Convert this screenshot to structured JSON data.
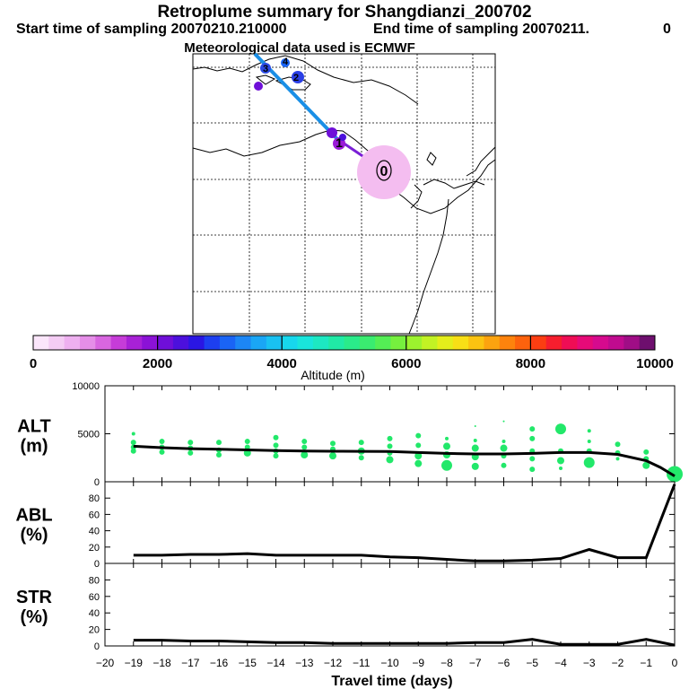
{
  "header": {
    "title": "Retroplume summary for Shangdianzi_200702",
    "start_label": "Start time of sampling 20070210.210000",
    "end_label": "End time of sampling 20070211.",
    "end_suffix": "0",
    "met_label": "Meteorological data used is ECMWF"
  },
  "map_overlay": {
    "receptor_marker": "0",
    "labels": [
      "4",
      "3",
      "2",
      "1"
    ]
  },
  "colors": {
    "plume_dark": "#7a1fd6",
    "plume_light": "#1a8fe6",
    "receptor_halo": "#f4bdf0",
    "dots": "#22e86a",
    "line": "#000000"
  },
  "icons": [
    "colorbar-icon",
    "plume-track-icon"
  ],
  "chart_data": [
    {
      "type": "colorbar",
      "title": "Altitude (m)",
      "range": [
        0,
        10000
      ],
      "tick_labels": [
        "0",
        "2000",
        "4000",
        "6000",
        "8000",
        "10000"
      ],
      "tick_values": [
        0,
        2000,
        4000,
        6000,
        8000,
        10000
      ],
      "colors": [
        "#fbe6fb",
        "#f4ccf4",
        "#eeb0f0",
        "#e58ee8",
        "#d866e0",
        "#c63cd8",
        "#a821d6",
        "#8b12d6",
        "#6f0fd8",
        "#4c10dc",
        "#2a16e3",
        "#1d3ff0",
        "#1a64f5",
        "#1c86f5",
        "#1aa6f5",
        "#19c1f2",
        "#17d7ed",
        "#19e5dc",
        "#1de8c2",
        "#20eaa6",
        "#2aeb8a",
        "#3aec70",
        "#54ee55",
        "#76f03e",
        "#9cf22e",
        "#c2f224",
        "#e4ee1b",
        "#f8df16",
        "#fbc311",
        "#fca30f",
        "#fd830d",
        "#fd620d",
        "#fb3e12",
        "#f61e2e",
        "#ef0d55",
        "#e60a78",
        "#d60a8e",
        "#c00b8f",
        "#a00d86",
        "#6e0f6e"
      ]
    },
    {
      "type": "scatter",
      "title": "ALT",
      "ylabel": "ALT (m)",
      "ylabel_lines": [
        "ALT",
        "(m)"
      ],
      "ylim": [
        0,
        10000
      ],
      "ytick_labels": [
        "0",
        "5000",
        "10000"
      ],
      "ytick_values": [
        0,
        5000,
        10000
      ],
      "line": {
        "x": [
          -19,
          -18,
          -17,
          -16,
          -15,
          -14,
          -13,
          -12,
          -11,
          -10,
          -9,
          -8,
          -7,
          -6,
          -5,
          -4,
          -3,
          -2,
          -1,
          -0.5,
          0
        ],
        "y": [
          3700,
          3550,
          3450,
          3380,
          3320,
          3250,
          3200,
          3180,
          3170,
          3150,
          3050,
          2950,
          2900,
          2900,
          2950,
          3050,
          3050,
          2850,
          2200,
          1500,
          600
        ]
      },
      "points": [
        {
          "x": -19,
          "y": 5000,
          "s": 2
        },
        {
          "x": -19,
          "y": 4100,
          "s": 3
        },
        {
          "x": -19,
          "y": 3600,
          "s": 3
        },
        {
          "x": -19,
          "y": 3200,
          "s": 3
        },
        {
          "x": -18,
          "y": 4200,
          "s": 3
        },
        {
          "x": -18,
          "y": 3600,
          "s": 3
        },
        {
          "x": -18,
          "y": 3100,
          "s": 3
        },
        {
          "x": -17,
          "y": 4100,
          "s": 3
        },
        {
          "x": -17,
          "y": 3500,
          "s": 3
        },
        {
          "x": -17,
          "y": 3000,
          "s": 3
        },
        {
          "x": -16,
          "y": 4100,
          "s": 3
        },
        {
          "x": -16,
          "y": 3300,
          "s": 3
        },
        {
          "x": -16,
          "y": 2800,
          "s": 3
        },
        {
          "x": -15,
          "y": 4200,
          "s": 3
        },
        {
          "x": -15,
          "y": 3600,
          "s": 3
        },
        {
          "x": -15,
          "y": 3000,
          "s": 4
        },
        {
          "x": -14,
          "y": 4600,
          "s": 3
        },
        {
          "x": -14,
          "y": 3800,
          "s": 3
        },
        {
          "x": -14,
          "y": 3200,
          "s": 3
        },
        {
          "x": -14,
          "y": 2700,
          "s": 3
        },
        {
          "x": -13,
          "y": 4200,
          "s": 3
        },
        {
          "x": -13,
          "y": 3600,
          "s": 3
        },
        {
          "x": -13,
          "y": 2800,
          "s": 4
        },
        {
          "x": -12,
          "y": 4000,
          "s": 3
        },
        {
          "x": -12,
          "y": 3400,
          "s": 3
        },
        {
          "x": -12,
          "y": 2700,
          "s": 4
        },
        {
          "x": -11,
          "y": 4100,
          "s": 3
        },
        {
          "x": -11,
          "y": 3200,
          "s": 4
        },
        {
          "x": -11,
          "y": 2500,
          "s": 3
        },
        {
          "x": -10,
          "y": 4500,
          "s": 3
        },
        {
          "x": -10,
          "y": 3700,
          "s": 3
        },
        {
          "x": -10,
          "y": 3000,
          "s": 3
        },
        {
          "x": -10,
          "y": 2300,
          "s": 4
        },
        {
          "x": -9,
          "y": 4800,
          "s": 3
        },
        {
          "x": -9,
          "y": 3800,
          "s": 3
        },
        {
          "x": -9,
          "y": 2700,
          "s": 4
        },
        {
          "x": -9,
          "y": 1900,
          "s": 4
        },
        {
          "x": -8,
          "y": 4500,
          "s": 2
        },
        {
          "x": -8,
          "y": 3700,
          "s": 4
        },
        {
          "x": -8,
          "y": 2800,
          "s": 4
        },
        {
          "x": -8,
          "y": 1700,
          "s": 6
        },
        {
          "x": -7,
          "y": 5800,
          "s": 1
        },
        {
          "x": -7,
          "y": 4300,
          "s": 2
        },
        {
          "x": -7,
          "y": 3500,
          "s": 4
        },
        {
          "x": -7,
          "y": 2600,
          "s": 4
        },
        {
          "x": -7,
          "y": 1600,
          "s": 4
        },
        {
          "x": -6,
          "y": 6300,
          "s": 1
        },
        {
          "x": -6,
          "y": 4200,
          "s": 2
        },
        {
          "x": -6,
          "y": 3500,
          "s": 4
        },
        {
          "x": -6,
          "y": 2700,
          "s": 3
        },
        {
          "x": -6,
          "y": 1700,
          "s": 3
        },
        {
          "x": -5,
          "y": 5500,
          "s": 3
        },
        {
          "x": -5,
          "y": 4500,
          "s": 3
        },
        {
          "x": -5,
          "y": 3200,
          "s": 3
        },
        {
          "x": -5,
          "y": 2400,
          "s": 3
        },
        {
          "x": -5,
          "y": 1300,
          "s": 3
        },
        {
          "x": -4,
          "y": 5500,
          "s": 6
        },
        {
          "x": -4,
          "y": 3200,
          "s": 3
        },
        {
          "x": -4,
          "y": 2200,
          "s": 4
        },
        {
          "x": -4,
          "y": 1400,
          "s": 2
        },
        {
          "x": -3,
          "y": 5300,
          "s": 2
        },
        {
          "x": -3,
          "y": 4200,
          "s": 2
        },
        {
          "x": -3,
          "y": 3200,
          "s": 3
        },
        {
          "x": -3,
          "y": 2000,
          "s": 6
        },
        {
          "x": -2,
          "y": 3900,
          "s": 3
        },
        {
          "x": -2,
          "y": 3000,
          "s": 3
        },
        {
          "x": -2,
          "y": 2400,
          "s": 2
        },
        {
          "x": -1,
          "y": 3100,
          "s": 3
        },
        {
          "x": -1,
          "y": 2400,
          "s": 3
        },
        {
          "x": -1,
          "y": 1700,
          "s": 4
        },
        {
          "x": 0,
          "y": 800,
          "s": 9
        }
      ]
    },
    {
      "type": "line",
      "title": "ABL",
      "ylabel": "ABL (%)",
      "ylabel_lines": [
        "ABL",
        "(%)"
      ],
      "ylim": [
        0,
        100
      ],
      "ytick_labels": [
        "0",
        "20",
        "40",
        "60",
        "80"
      ],
      "ytick_values": [
        0,
        20,
        40,
        60,
        80
      ],
      "x": [
        -19,
        -18,
        -17,
        -16,
        -15,
        -14,
        -13,
        -12,
        -11,
        -10,
        -9,
        -8,
        -7,
        -6,
        -5,
        -4,
        -3,
        -2,
        -1,
        0
      ],
      "y": [
        10,
        10,
        11,
        11,
        12,
        10,
        10,
        10,
        10,
        8,
        7,
        5,
        3,
        3,
        4,
        6,
        17,
        7,
        7,
        97
      ]
    },
    {
      "type": "line",
      "title": "STR",
      "ylabel": "STR (%)",
      "ylabel_lines": [
        "STR",
        "(%)"
      ],
      "ylim": [
        0,
        100
      ],
      "ytick_labels": [
        "0",
        "20",
        "40",
        "60",
        "80"
      ],
      "ytick_values": [
        0,
        20,
        40,
        60,
        80
      ],
      "xlabel": "Travel time (days)",
      "x": [
        -19,
        -18,
        -17,
        -16,
        -15,
        -14,
        -13,
        -12,
        -11,
        -10,
        -9,
        -8,
        -7,
        -6,
        -5,
        -4,
        -3,
        -2,
        -1,
        0
      ],
      "y": [
        7,
        7,
        6,
        6,
        5,
        4,
        4,
        3,
        3,
        3,
        3,
        3,
        4,
        4,
        8,
        2,
        2,
        2,
        8,
        1
      ],
      "xlim": [
        -20,
        0
      ],
      "xtick_labels": [
        "−20",
        "−19",
        "−18",
        "−17",
        "−16",
        "−15",
        "−14",
        "−13",
        "−12",
        "−11",
        "−10",
        "−9",
        "−8",
        "−7",
        "−6",
        "−5",
        "−4",
        "−3",
        "−2",
        "−1",
        "0"
      ],
      "xtick_values": [
        -20,
        -19,
        -18,
        -17,
        -16,
        -15,
        -14,
        -13,
        -12,
        -11,
        -10,
        -9,
        -8,
        -7,
        -6,
        -5,
        -4,
        -3,
        -2,
        -1,
        0
      ]
    }
  ]
}
